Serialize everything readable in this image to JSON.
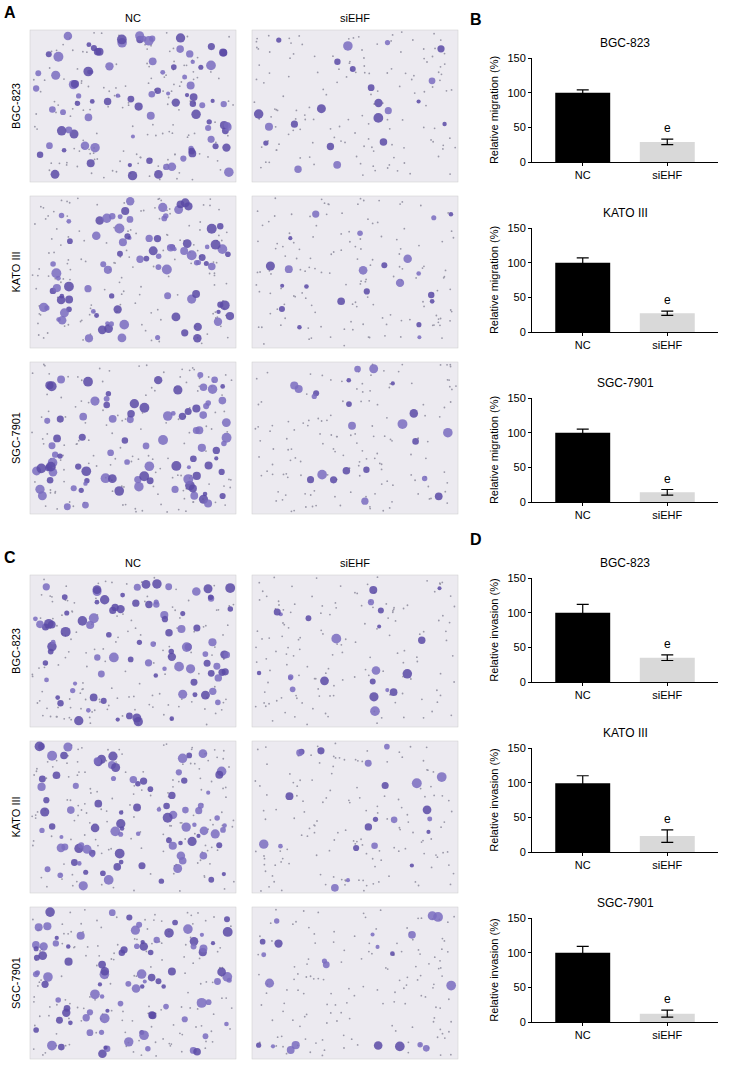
{
  "chart_data": [
    {
      "type": "bar",
      "panel": "B",
      "title": "BGC-823",
      "categories": [
        "NC",
        "siEHF"
      ],
      "values": [
        100,
        29
      ],
      "errors": [
        4,
        4
      ],
      "colors": [
        "#000000",
        "#d9d9d9"
      ],
      "y_label": "Relative migration (%)",
      "ylim": [
        0,
        150
      ],
      "yticks": [
        0,
        50,
        100,
        150
      ],
      "grid": false,
      "annotations": [
        {
          "category": "siEHF",
          "text": "e"
        }
      ]
    },
    {
      "type": "bar",
      "panel": "B",
      "title": "KATO III",
      "categories": [
        "NC",
        "siEHF"
      ],
      "values": [
        100,
        27
      ],
      "errors": [
        7,
        3
      ],
      "colors": [
        "#000000",
        "#d9d9d9"
      ],
      "y_label": "Relative migration (%)",
      "ylim": [
        0,
        150
      ],
      "yticks": [
        0,
        50,
        100,
        150
      ],
      "grid": false,
      "annotations": [
        {
          "category": "siEHF",
          "text": "e"
        }
      ]
    },
    {
      "type": "bar",
      "panel": "B",
      "title": "SGC-7901",
      "categories": [
        "NC",
        "siEHF"
      ],
      "values": [
        100,
        14
      ],
      "errors": [
        5,
        4
      ],
      "colors": [
        "#000000",
        "#d9d9d9"
      ],
      "y_label": "Relative migration (%)",
      "ylim": [
        0,
        150
      ],
      "yticks": [
        0,
        50,
        100,
        150
      ],
      "grid": false,
      "annotations": [
        {
          "category": "siEHF",
          "text": "e"
        }
      ]
    },
    {
      "type": "bar",
      "panel": "D",
      "title": "BGC-823",
      "categories": [
        "NC",
        "siEHF"
      ],
      "values": [
        100,
        35
      ],
      "errors": [
        12,
        4
      ],
      "colors": [
        "#000000",
        "#d9d9d9"
      ],
      "y_label": "Relative invasion (%)",
      "ylim": [
        0,
        150
      ],
      "yticks": [
        0,
        50,
        100,
        150
      ],
      "grid": false,
      "annotations": [
        {
          "category": "siEHF",
          "text": "e"
        }
      ]
    },
    {
      "type": "bar",
      "panel": "D",
      "title": "KATO III",
      "categories": [
        "NC",
        "siEHF"
      ],
      "values": [
        99,
        23
      ],
      "errors": [
        11,
        9
      ],
      "colors": [
        "#000000",
        "#d9d9d9"
      ],
      "y_label": "Relative invasion (%)",
      "ylim": [
        0,
        150
      ],
      "yticks": [
        0,
        50,
        100,
        150
      ],
      "grid": false,
      "annotations": [
        {
          "category": "siEHF",
          "text": "e"
        }
      ]
    },
    {
      "type": "bar",
      "panel": "D",
      "title": "SGC-7901",
      "categories": [
        "NC",
        "siEHF"
      ],
      "values": [
        100,
        12
      ],
      "errors": [
        9,
        5
      ],
      "colors": [
        "#000000",
        "#d9d9d9"
      ],
      "y_label": "Relative invasion (%)",
      "ylim": [
        0,
        150
      ],
      "yticks": [
        0,
        50,
        100,
        150
      ],
      "grid": false,
      "annotations": [
        {
          "category": "siEHF",
          "text": "e"
        }
      ]
    }
  ],
  "image_panels": [
    {
      "panel": "A",
      "columns": [
        "NC",
        "siEHF"
      ],
      "rows": [
        "BGC-823",
        "KATO III",
        "SGC-7901"
      ]
    },
    {
      "panel": "C",
      "columns": [
        "NC",
        "siEHF"
      ],
      "rows": [
        "BGC-823",
        "KATO III",
        "SGC-7901"
      ]
    }
  ]
}
